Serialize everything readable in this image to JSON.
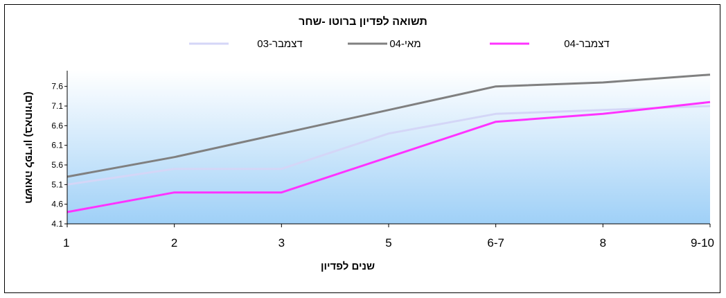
{
  "chart_data": {
    "type": "line",
    "title": "תשואה לפדיון ברוטו -שחר",
    "xlabel": "שנים לפדיון",
    "ylabel": "תשואה לפדיון (באחוזים)",
    "categories": [
      "1",
      "2",
      "3",
      "5",
      "6-7",
      "8",
      "9-10"
    ],
    "yticks": [
      "4.1",
      "4.6",
      "5.1",
      "5.6",
      "6.1",
      "6.6",
      "7.1",
      "7.6"
    ],
    "ylim": [
      4.1,
      8.0
    ],
    "grid": false,
    "legend_position": "top",
    "series": [
      {
        "name": "דצמבר-03",
        "color": "#d4d6f7",
        "values": [
          5.1,
          5.5,
          5.5,
          6.4,
          6.9,
          7.0,
          7.1
        ]
      },
      {
        "name": "מאי-04",
        "color": "#808080",
        "values": [
          5.3,
          5.8,
          6.4,
          7.0,
          7.6,
          7.7,
          7.9
        ]
      },
      {
        "name": "דצמבר-04",
        "color": "#ff33ff",
        "values": [
          4.4,
          4.9,
          4.9,
          5.8,
          6.7,
          6.9,
          7.2
        ]
      }
    ]
  }
}
